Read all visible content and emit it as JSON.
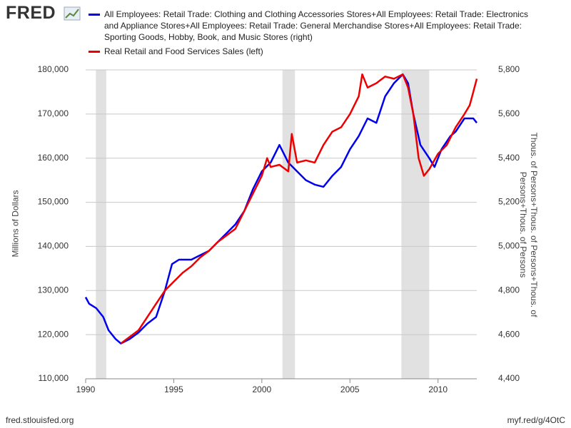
{
  "logo": "FRED",
  "source": "fred.stlouisfed.org",
  "short_url": "myf.red/g/4OtC",
  "chart_data": {
    "type": "line",
    "ylabel": "Millions of Dollars",
    "y2label": "Thous. of Persons+Thous. of Persons+Thous. of Persons+Thous. of Persons",
    "xlim": [
      1990,
      2012.2
    ],
    "xticks": [
      1990,
      1995,
      2000,
      2005,
      2010
    ],
    "ylim": [
      110000,
      180000
    ],
    "yticks": [
      {
        "value": 110000,
        "label": "110,000"
      },
      {
        "value": 120000,
        "label": "120,000"
      },
      {
        "value": 130000,
        "label": "130,000"
      },
      {
        "value": 140000,
        "label": "140,000"
      },
      {
        "value": 150000,
        "label": "150,000"
      },
      {
        "value": 160000,
        "label": "160,000"
      },
      {
        "value": 170000,
        "label": "170,000"
      },
      {
        "value": 180000,
        "label": "180,000"
      }
    ],
    "y2lim": [
      4400,
      5800
    ],
    "y2ticks": [
      {
        "value": 4400,
        "label": "4,400"
      },
      {
        "value": 4600,
        "label": "4,600"
      },
      {
        "value": 4800,
        "label": "4,800"
      },
      {
        "value": 5000,
        "label": "5,000"
      },
      {
        "value": 5200,
        "label": "5,200"
      },
      {
        "value": 5400,
        "label": "5,400"
      },
      {
        "value": 5600,
        "label": "5,600"
      },
      {
        "value": 5800,
        "label": "5,800"
      }
    ],
    "grid": true,
    "recessions": [
      [
        1990.58,
        1991.17
      ],
      [
        2001.17,
        2001.88
      ],
      [
        2007.92,
        2009.5
      ]
    ],
    "series": [
      {
        "name": "All Employees: Retail Trade: Clothing and Clothing Accessories Stores+All Employees: Retail Trade: Electronics and Appliance Stores+All Employees: Retail Trade: General Merchandise Stores+All Employees: Retail Trade: Sporting Goods, Hobby, Book, and Music Stores (right)",
        "color": "#0000ee",
        "axis": "y2",
        "x": [
          1990.0,
          1990.2,
          1990.6,
          1991.0,
          1991.3,
          1991.7,
          1992.0,
          1992.5,
          1993.0,
          1993.5,
          1994.0,
          1994.5,
          1994.9,
          1995.3,
          1996.0,
          1996.5,
          1997.0,
          1997.5,
          1998.0,
          1998.5,
          1999.0,
          1999.5,
          2000.0,
          2000.5,
          2001.0,
          2001.5,
          2002.0,
          2002.5,
          2003.0,
          2003.5,
          2004.0,
          2004.5,
          2005.0,
          2005.5,
          2006.0,
          2006.5,
          2007.0,
          2007.5,
          2008.0,
          2008.3,
          2008.6,
          2009.0,
          2009.5,
          2009.8,
          2010.2,
          2010.7,
          2011.0,
          2011.5,
          2012.0,
          2012.2
        ],
        "values": [
          4770,
          4740,
          4720,
          4680,
          4620,
          4580,
          4560,
          4580,
          4610,
          4650,
          4680,
          4800,
          4920,
          4940,
          4940,
          4960,
          4980,
          5020,
          5060,
          5100,
          5160,
          5260,
          5340,
          5380,
          5460,
          5380,
          5340,
          5300,
          5280,
          5270,
          5320,
          5360,
          5440,
          5500,
          5580,
          5560,
          5680,
          5740,
          5780,
          5740,
          5600,
          5460,
          5400,
          5360,
          5440,
          5500,
          5520,
          5580,
          5580,
          5560
        ]
      },
      {
        "name": "Real Retail and Food Services Sales (left)",
        "color": "#ee0000",
        "x": [
          1992.0,
          1992.5,
          1993.0,
          1993.5,
          1994.0,
          1994.5,
          1995.0,
          1995.5,
          1996.0,
          1996.5,
          1997.0,
          1997.5,
          1998.0,
          1998.5,
          1999.0,
          1999.5,
          2000.0,
          2000.3,
          2000.5,
          2001.0,
          2001.5,
          2001.7,
          2002.0,
          2002.5,
          2003.0,
          2003.5,
          2004.0,
          2004.5,
          2005.0,
          2005.5,
          2005.7,
          2006.0,
          2006.5,
          2007.0,
          2007.5,
          2008.0,
          2008.3,
          2008.6,
          2008.9,
          2009.2,
          2009.5,
          2010.0,
          2010.5,
          2011.0,
          2011.5,
          2011.8,
          2012.0,
          2012.2
        ],
        "values": [
          118000,
          119500,
          121000,
          124000,
          127000,
          130000,
          132000,
          134000,
          135500,
          137500,
          139000,
          141000,
          142500,
          144000,
          148000,
          152000,
          156000,
          160000,
          158000,
          158500,
          157000,
          165500,
          159000,
          159500,
          159000,
          163000,
          166000,
          167000,
          170000,
          174000,
          179000,
          176000,
          177000,
          178500,
          178000,
          179000,
          176000,
          170000,
          160000,
          156000,
          157500,
          161000,
          163000,
          167000,
          170000,
          172000,
          175000,
          178000
        ]
      }
    ]
  }
}
